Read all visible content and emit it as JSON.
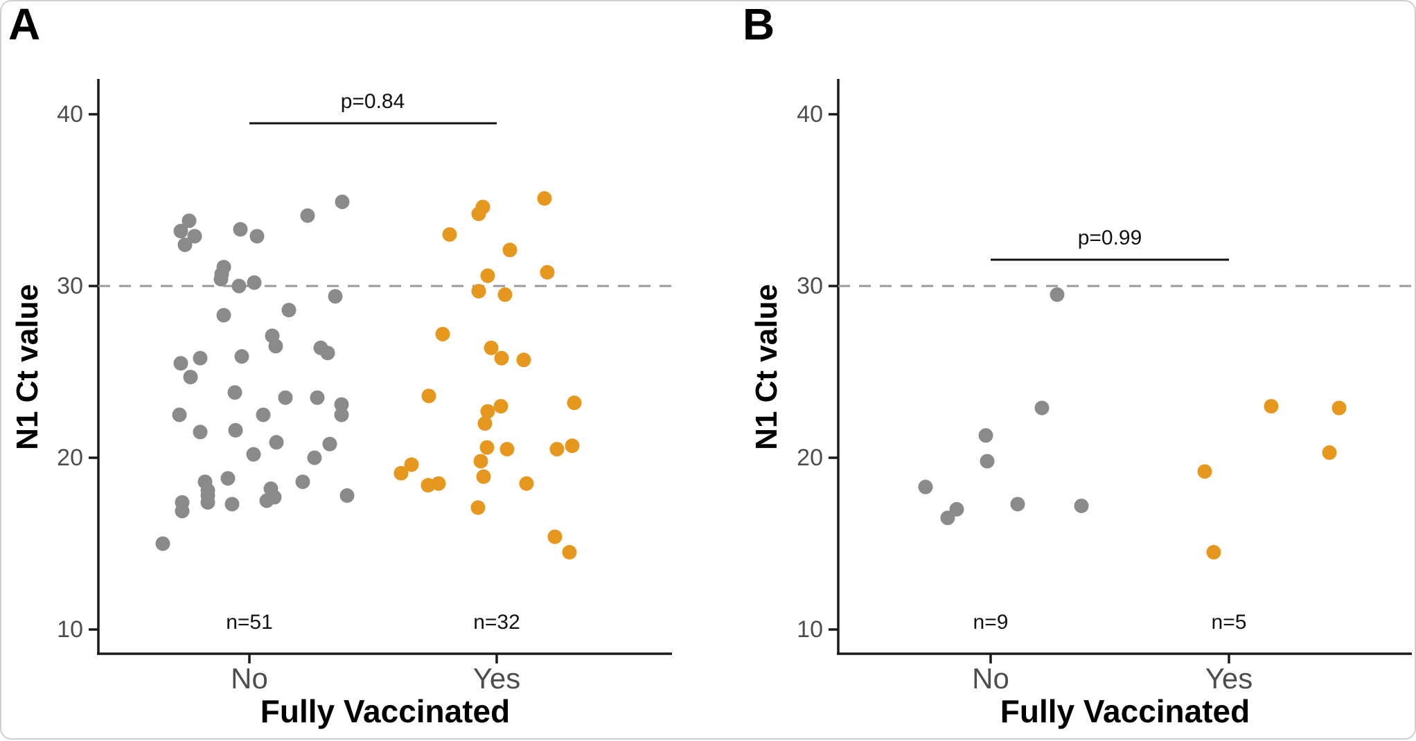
{
  "figure": {
    "panels": [
      {
        "label": "A"
      },
      {
        "label": "B"
      }
    ],
    "colors": {
      "not_vaccinated_points": "#8A8A8A",
      "vaccinated_points": "#E6971E",
      "reference_line": "#999999",
      "axis": "#1a1a1a",
      "tick_text": "#4d4d4d"
    }
  },
  "chart_data": [
    {
      "type": "scatter",
      "panel": "A",
      "xlabel": "Fully Vaccinated",
      "ylabel": "N1 Ct value",
      "categories": [
        "No",
        "Yes"
      ],
      "yticks": [
        "40",
        "30",
        "20",
        "10"
      ],
      "ylim": [
        8.5,
        42.5
      ],
      "reference_line_y": 30,
      "grid": "off",
      "p_value_label": "p=0.84",
      "group_n_labels": [
        "n=51",
        "n=32"
      ],
      "series": [
        {
          "name": "No",
          "n": 51,
          "color": "#8A8A8A",
          "points": [
            {
              "dx": -87,
              "ct": 33.8
            },
            {
              "dx": -99,
              "ct": 33.2
            },
            {
              "dx": -79,
              "ct": 32.9
            },
            {
              "dx": -93,
              "ct": 32.4
            },
            {
              "dx": -13,
              "ct": 33.3
            },
            {
              "dx": 11,
              "ct": 32.9
            },
            {
              "dx": 84,
              "ct": 34.1
            },
            {
              "dx": 134,
              "ct": 34.9
            },
            {
              "dx": -37,
              "ct": 31.1
            },
            {
              "dx": -41,
              "ct": 30.4
            },
            {
              "dx": -40,
              "ct": 30.7
            },
            {
              "dx": -15,
              "ct": 30.0
            },
            {
              "dx": 7,
              "ct": 30.2
            },
            {
              "dx": 124,
              "ct": 29.4
            },
            {
              "dx": -37,
              "ct": 28.3
            },
            {
              "dx": 57,
              "ct": 28.6
            },
            {
              "dx": 33,
              "ct": 27.1
            },
            {
              "dx": 38,
              "ct": 26.5
            },
            {
              "dx": 103,
              "ct": 26.4
            },
            {
              "dx": 113,
              "ct": 26.1
            },
            {
              "dx": -11,
              "ct": 25.9
            },
            {
              "dx": -71,
              "ct": 25.8
            },
            {
              "dx": -99,
              "ct": 25.5
            },
            {
              "dx": -85,
              "ct": 24.7
            },
            {
              "dx": -21,
              "ct": 23.8
            },
            {
              "dx": 52,
              "ct": 23.5
            },
            {
              "dx": 98,
              "ct": 23.5
            },
            {
              "dx": 133,
              "ct": 23.1
            },
            {
              "dx": 133,
              "ct": 22.5
            },
            {
              "dx": -101,
              "ct": 22.5
            },
            {
              "dx": 20,
              "ct": 22.5
            },
            {
              "dx": -71,
              "ct": 21.5
            },
            {
              "dx": -20,
              "ct": 21.6
            },
            {
              "dx": 39,
              "ct": 20.9
            },
            {
              "dx": 116,
              "ct": 20.8
            },
            {
              "dx": 6,
              "ct": 20.2
            },
            {
              "dx": 94,
              "ct": 20.0
            },
            {
              "dx": -64,
              "ct": 18.6
            },
            {
              "dx": -31,
              "ct": 18.8
            },
            {
              "dx": 77,
              "ct": 18.6
            },
            {
              "dx": 31,
              "ct": 18.2
            },
            {
              "dx": -60,
              "ct": 18.1
            },
            {
              "dx": -60,
              "ct": 17.8
            },
            {
              "dx": -60,
              "ct": 17.4
            },
            {
              "dx": -97,
              "ct": 17.4
            },
            {
              "dx": -97,
              "ct": 16.9
            },
            {
              "dx": -25,
              "ct": 17.3
            },
            {
              "dx": 25,
              "ct": 17.5
            },
            {
              "dx": 36,
              "ct": 17.7
            },
            {
              "dx": 141,
              "ct": 17.8
            },
            {
              "dx": -125,
              "ct": 15.0
            }
          ]
        },
        {
          "name": "Yes",
          "n": 32,
          "color": "#E6971E",
          "points": [
            {
              "dx": -20,
              "ct": 34.6
            },
            {
              "dx": -26,
              "ct": 34.2
            },
            {
              "dx": 69,
              "ct": 35.1
            },
            {
              "dx": -68,
              "ct": 33.0
            },
            {
              "dx": 19,
              "ct": 32.1
            },
            {
              "dx": -13,
              "ct": 30.6
            },
            {
              "dx": 73,
              "ct": 30.8
            },
            {
              "dx": -26,
              "ct": 29.7
            },
            {
              "dx": 12,
              "ct": 29.5
            },
            {
              "dx": -78,
              "ct": 27.2
            },
            {
              "dx": -8,
              "ct": 26.4
            },
            {
              "dx": 7,
              "ct": 25.8
            },
            {
              "dx": 39,
              "ct": 25.7
            },
            {
              "dx": -98,
              "ct": 23.6
            },
            {
              "dx": 6,
              "ct": 23.0
            },
            {
              "dx": -13,
              "ct": 22.7
            },
            {
              "dx": 112,
              "ct": 23.2
            },
            {
              "dx": -17,
              "ct": 22.0
            },
            {
              "dx": -14,
              "ct": 20.6
            },
            {
              "dx": 15,
              "ct": 20.5
            },
            {
              "dx": 87,
              "ct": 20.5
            },
            {
              "dx": 109,
              "ct": 20.7
            },
            {
              "dx": -23,
              "ct": 19.8
            },
            {
              "dx": -123,
              "ct": 19.6
            },
            {
              "dx": -138,
              "ct": 19.1
            },
            {
              "dx": -99,
              "ct": 18.4
            },
            {
              "dx": -84,
              "ct": 18.5
            },
            {
              "dx": -19,
              "ct": 18.9
            },
            {
              "dx": 43,
              "ct": 18.5
            },
            {
              "dx": -27,
              "ct": 17.1
            },
            {
              "dx": 84,
              "ct": 15.4
            },
            {
              "dx": 105,
              "ct": 14.5
            }
          ]
        }
      ]
    },
    {
      "type": "scatter",
      "panel": "B",
      "xlabel": "Fully Vaccinated",
      "ylabel": "N1 Ct value",
      "categories": [
        "No",
        "Yes"
      ],
      "yticks": [
        "40",
        "30",
        "20",
        "10"
      ],
      "ylim": [
        8.5,
        42.5
      ],
      "reference_line_y": 30,
      "grid": "off",
      "p_value_label": "p=0.99",
      "group_n_labels": [
        "n=9",
        "n=5"
      ],
      "series": [
        {
          "name": "No",
          "n": 9,
          "color": "#8A8A8A",
          "points": [
            {
              "dx": 96,
              "ct": 29.5
            },
            {
              "dx": 74,
              "ct": 22.9
            },
            {
              "dx": -7,
              "ct": 21.3
            },
            {
              "dx": -5,
              "ct": 19.8
            },
            {
              "dx": -94,
              "ct": 18.3
            },
            {
              "dx": -49,
              "ct": 17.0
            },
            {
              "dx": -62,
              "ct": 16.5
            },
            {
              "dx": 39,
              "ct": 17.3
            },
            {
              "dx": 131,
              "ct": 17.2
            }
          ]
        },
        {
          "name": "Yes",
          "n": 5,
          "color": "#E6971E",
          "points": [
            {
              "dx": 61,
              "ct": 23.0
            },
            {
              "dx": 159,
              "ct": 22.9
            },
            {
              "dx": 145,
              "ct": 20.3
            },
            {
              "dx": -35,
              "ct": 19.2
            },
            {
              "dx": -22,
              "ct": 14.5
            }
          ]
        }
      ]
    }
  ]
}
